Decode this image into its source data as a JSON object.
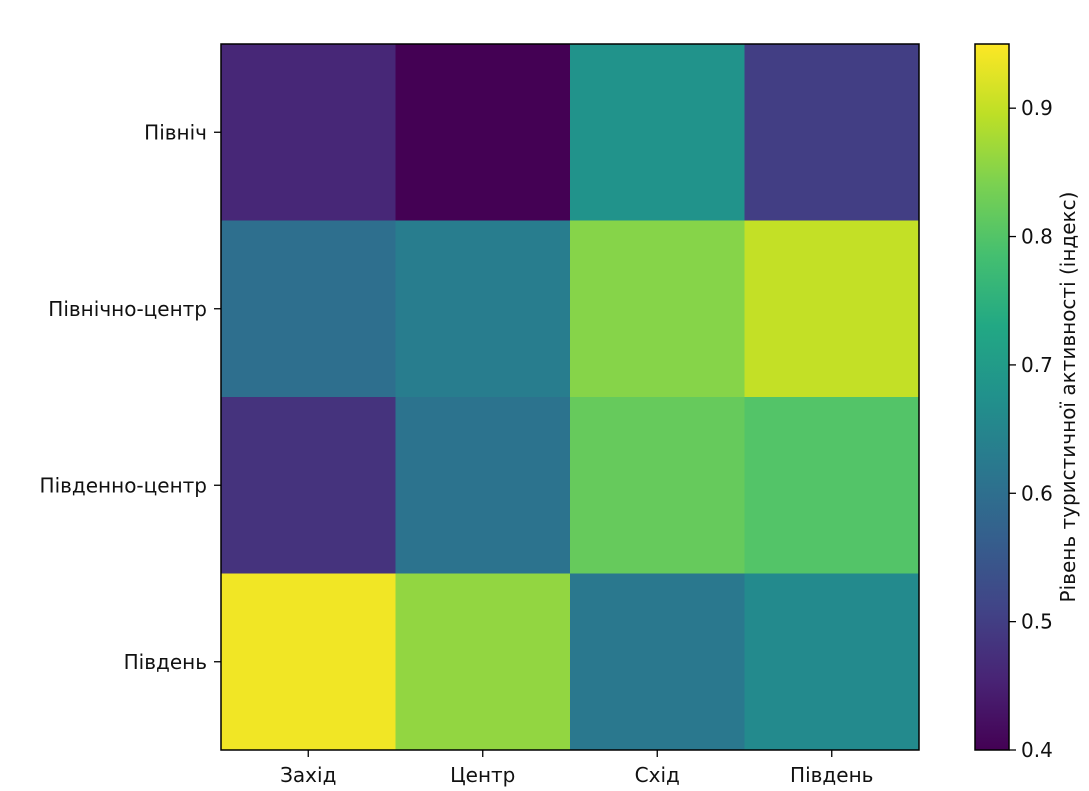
{
  "chart_data": {
    "type": "heatmap",
    "title": "",
    "xlabel": "",
    "ylabel": "",
    "x_categories": [
      "Захід",
      "Центр",
      "Схід",
      "Південь"
    ],
    "y_categories": [
      "Північ",
      "Північно-центр",
      "Південно-центр",
      "Південь"
    ],
    "values": [
      [
        0.46,
        0.4,
        0.68,
        0.5
      ],
      [
        0.6,
        0.63,
        0.85,
        0.9
      ],
      [
        0.48,
        0.61,
        0.82,
        0.8
      ],
      [
        0.94,
        0.86,
        0.62,
        0.66
      ]
    ],
    "colormap": "viridis",
    "colorbar": {
      "label": "Рівень туристичної активності (індекс)",
      "range": [
        0.4,
        0.95
      ],
      "ticks": [
        0.4,
        0.5,
        0.6,
        0.7,
        0.8,
        0.9
      ],
      "tick_labels": [
        "0.4",
        "0.5",
        "0.6",
        "0.7",
        "0.8",
        "0.9"
      ],
      "position": "right"
    },
    "grid": false
  }
}
